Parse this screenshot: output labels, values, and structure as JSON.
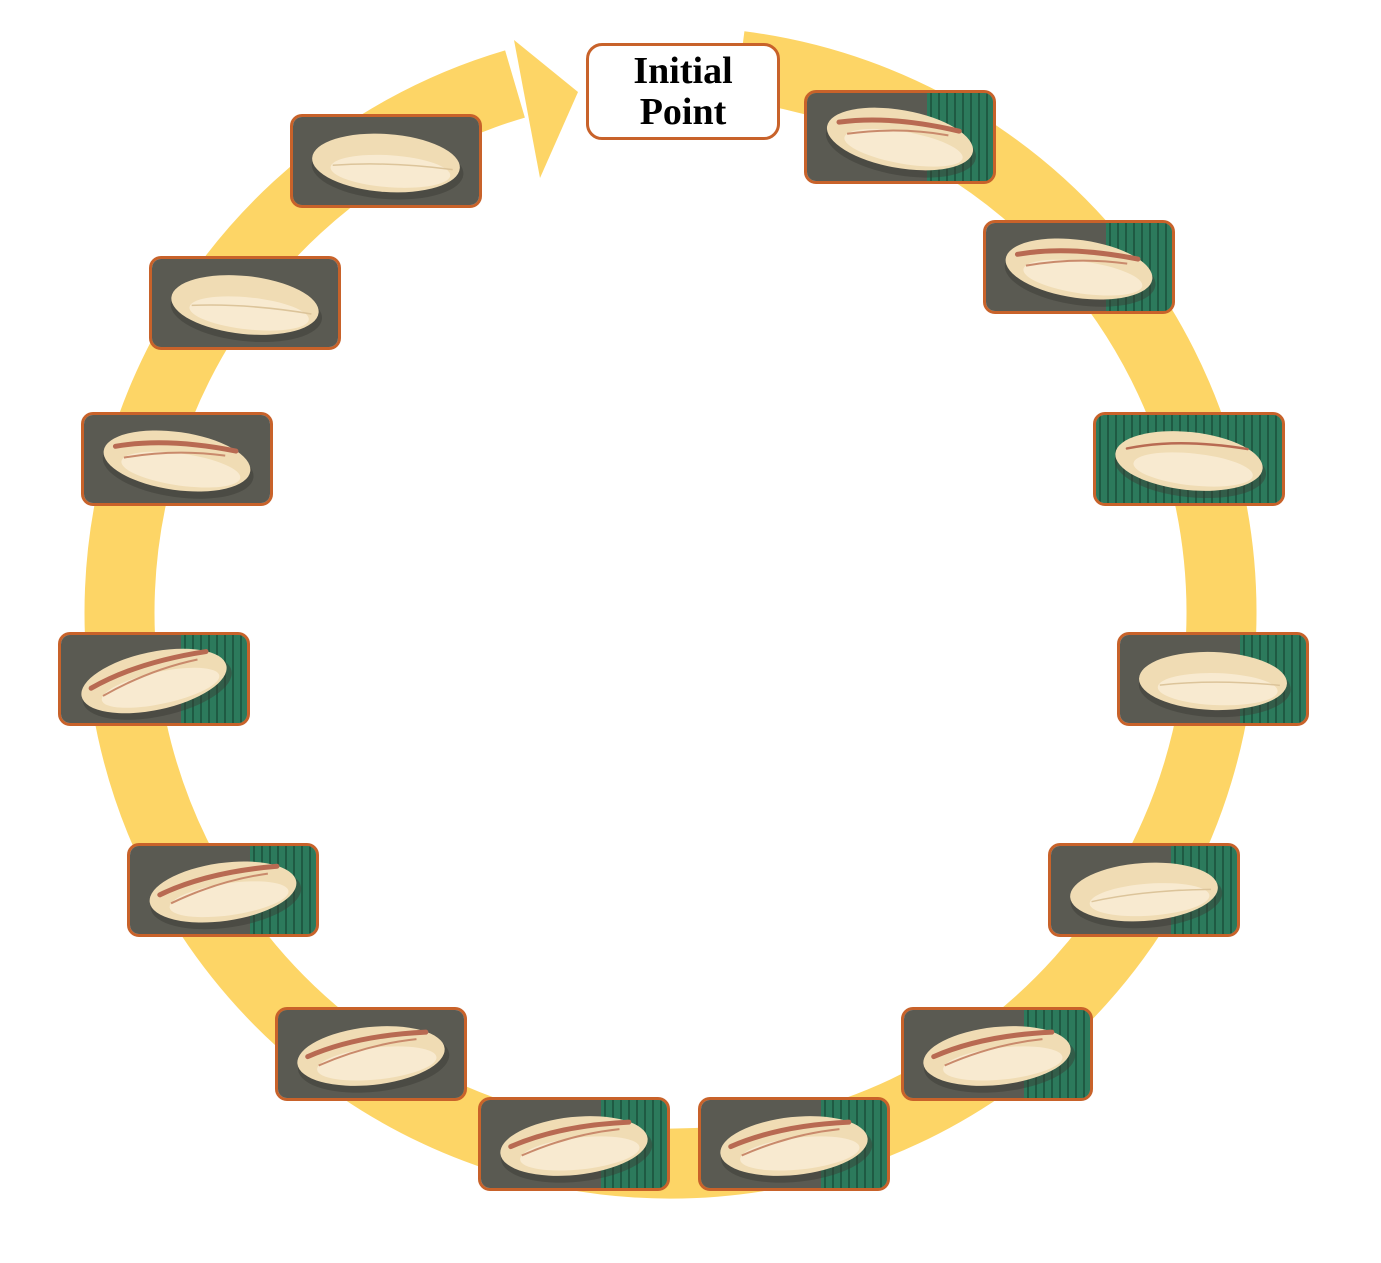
{
  "label": {
    "line1": "Initial",
    "line2": "Point"
  },
  "colors": {
    "ring": "#fdd566",
    "frame_border": "#c8622a",
    "label_border": "#c8622a",
    "nut": "#f0dcb4",
    "nut_split": "#b86a52",
    "bg_green": "#2c7a5c",
    "bg_grey": "#5a5a52"
  },
  "frames": [
    {
      "name": "frame-step-1",
      "split": "open",
      "bg": "grey-green"
    },
    {
      "name": "frame-step-2",
      "split": "open",
      "bg": "grey-green"
    },
    {
      "name": "frame-step-3",
      "split": "slight",
      "bg": "green"
    },
    {
      "name": "frame-step-4",
      "split": "closed",
      "bg": "grey-green"
    },
    {
      "name": "frame-step-5",
      "split": "closed",
      "bg": "grey-green"
    },
    {
      "name": "frame-step-6",
      "split": "open",
      "bg": "grey-green"
    },
    {
      "name": "frame-step-7",
      "split": "open",
      "bg": "grey-green"
    },
    {
      "name": "frame-step-8",
      "split": "open",
      "bg": "grey-green"
    },
    {
      "name": "frame-step-9",
      "split": "open",
      "bg": "grey"
    },
    {
      "name": "frame-step-10",
      "split": "open",
      "bg": "grey-green"
    },
    {
      "name": "frame-step-11",
      "split": "open",
      "bg": "grey-green"
    },
    {
      "name": "frame-step-12",
      "split": "open",
      "bg": "grey"
    },
    {
      "name": "frame-step-13",
      "split": "closed",
      "bg": "grey"
    },
    {
      "name": "frame-step-14",
      "split": "closed",
      "bg": "grey"
    }
  ]
}
